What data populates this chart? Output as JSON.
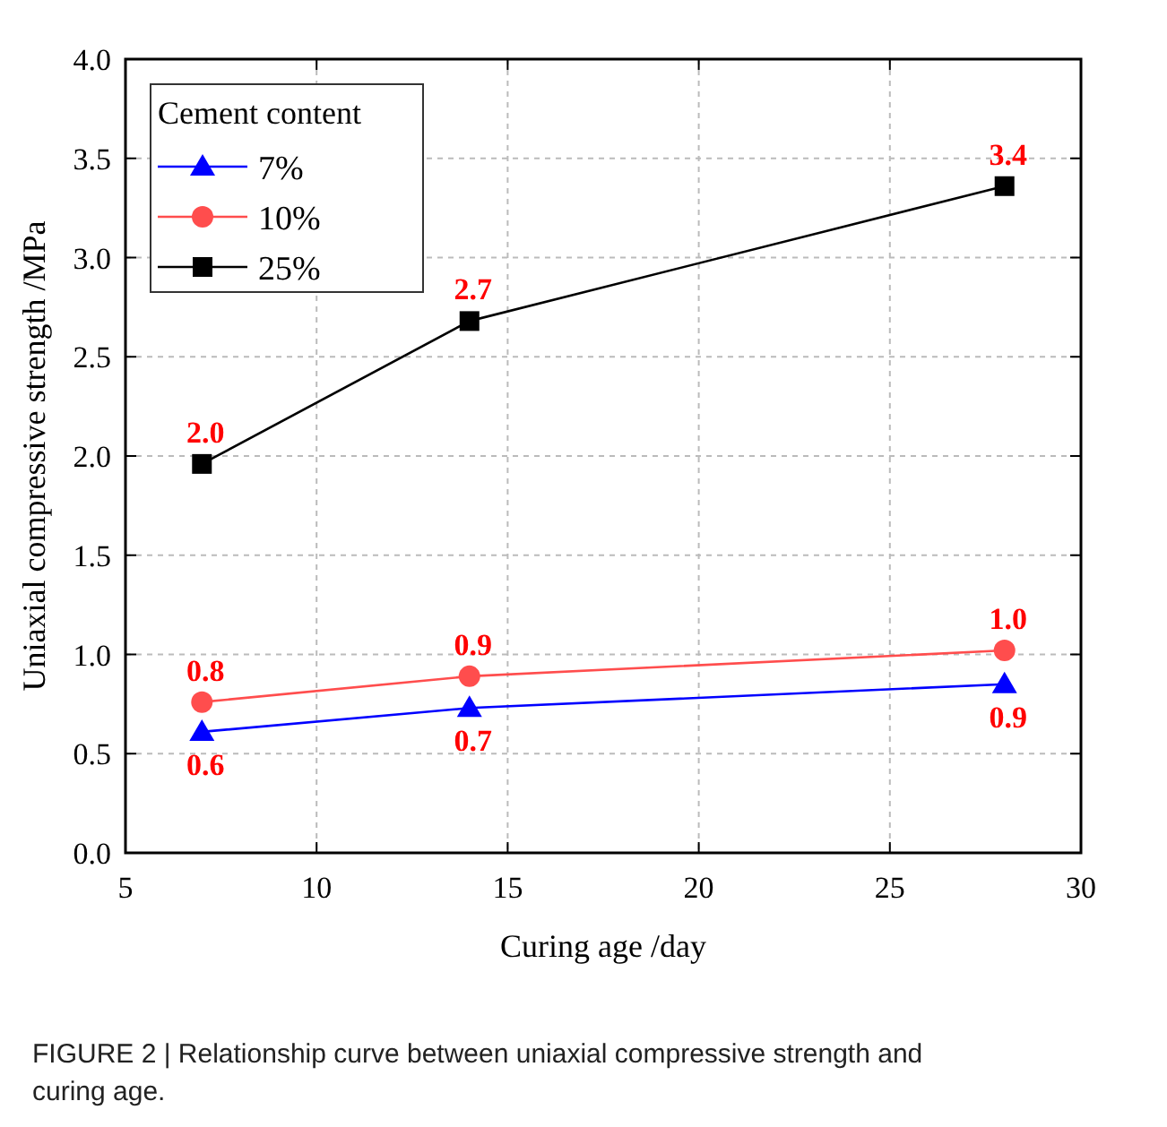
{
  "chart_data": {
    "type": "line",
    "xlabel": "Curing age /day",
    "ylabel": "Uniaxial compressive strength /MPa",
    "legend_title": "Cement content",
    "x": [
      7,
      14,
      28
    ],
    "series": [
      {
        "name": "7%",
        "color": "#0000ff",
        "marker": "triangle",
        "values": [
          0.61,
          0.73,
          0.85
        ],
        "value_labels": [
          "0.6",
          "0.7",
          "0.9"
        ]
      },
      {
        "name": "10%",
        "color": "#ff4d4d",
        "marker": "circle",
        "values": [
          0.76,
          0.89,
          1.02
        ],
        "value_labels": [
          "0.8",
          "0.9",
          "1.0"
        ]
      },
      {
        "name": "25%",
        "color": "#000000",
        "marker": "square",
        "values": [
          1.96,
          2.68,
          3.36
        ],
        "value_labels": [
          "2.0",
          "2.7",
          "3.4"
        ]
      }
    ],
    "xlim": [
      5,
      30
    ],
    "xticks": [
      5,
      10,
      15,
      20,
      25,
      30
    ],
    "ylim": [
      0,
      4
    ],
    "yticks": [
      {
        "value": 0,
        "label": "0.0"
      },
      {
        "value": 0.5,
        "label": "0.5"
      },
      {
        "value": 1,
        "label": "1.0"
      },
      {
        "value": 1.5,
        "label": "1.5"
      },
      {
        "value": 2,
        "label": "2.0"
      },
      {
        "value": 2.5,
        "label": "2.5"
      },
      {
        "value": 3,
        "label": "3.0"
      },
      {
        "value": 3.5,
        "label": "3.5"
      },
      {
        "value": 4,
        "label": "4.0"
      }
    ],
    "grid": true,
    "legend": "top left",
    "line_style": "solid",
    "annotations": [
      "FIGURE 2 | Relationship curve between uniaxial compressive strength and curing age."
    ]
  }
}
